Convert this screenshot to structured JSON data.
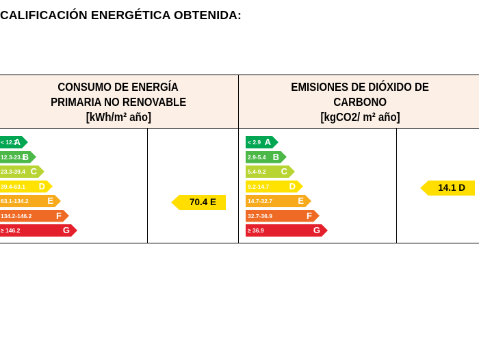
{
  "title": "CALIFICACIÓN ENERGÉTICA OBTENIDA:",
  "consumo": {
    "header": [
      "CONSUMO DE ENERGÍA",
      "PRIMARIA NO RENOVABLE",
      "[kWh/m² año]"
    ],
    "scale": [
      {
        "range": "< 12.3",
        "letter": "A",
        "color": "#00a652"
      },
      {
        "range": "12.3-23.3",
        "letter": "B",
        "color": "#4cb848"
      },
      {
        "range": "23.3-39.4",
        "letter": "C",
        "color": "#b8d433"
      },
      {
        "range": "39.4-63.1",
        "letter": "D",
        "color": "#ffe200"
      },
      {
        "range": "63.1-134.2",
        "letter": "E",
        "color": "#f7ab1c"
      },
      {
        "range": "134.2-146.2",
        "letter": "F",
        "color": "#ef6b25"
      },
      {
        "range": "≥ 146.2",
        "letter": "G",
        "color": "#e4202d"
      }
    ],
    "value": "70.4 E"
  },
  "emisiones": {
    "header": [
      "EMISIONES DE DIÓXIDO DE",
      "CARBONO",
      "[kgCO2/ m² año]"
    ],
    "scale": [
      {
        "range": "< 2.9",
        "letter": "A",
        "color": "#00a652"
      },
      {
        "range": "2.9-5.4",
        "letter": "B",
        "color": "#4cb848"
      },
      {
        "range": "5.4-9.2",
        "letter": "C",
        "color": "#b8d433"
      },
      {
        "range": "9.2-14.7",
        "letter": "D",
        "color": "#ffe200"
      },
      {
        "range": "14.7-32.7",
        "letter": "E",
        "color": "#f7ab1c"
      },
      {
        "range": "32.7-36.9",
        "letter": "F",
        "color": "#ef6b25"
      },
      {
        "range": "≥ 36.9",
        "letter": "G",
        "color": "#e4202d"
      }
    ],
    "value": "14.1 D"
  }
}
